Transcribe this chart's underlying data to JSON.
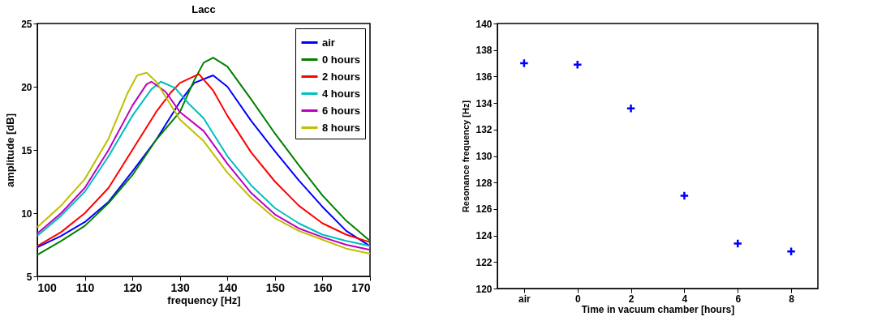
{
  "chart_data": [
    {
      "type": "line",
      "title": "Lacc",
      "xlabel": "frequency [Hz]",
      "ylabel": "amplitude [dB]",
      "xlim": [
        100,
        170
      ],
      "ylim": [
        5,
        25
      ],
      "xticks": [
        100,
        110,
        120,
        130,
        140,
        150,
        160,
        170
      ],
      "yticks": [
        5,
        10,
        15,
        20,
        25
      ],
      "grid": false,
      "legend": "top right",
      "line_style": "solid",
      "series": [
        {
          "name": "air",
          "color": "#0000ff",
          "x": [
            100,
            105,
            110,
            115,
            120,
            125,
            130,
            133,
            137,
            140,
            145,
            150,
            155,
            160,
            165,
            170
          ],
          "values": [
            7.3,
            8.2,
            9.3,
            10.9,
            13.3,
            15.8,
            18.8,
            20.3,
            20.9,
            20.0,
            17.3,
            14.9,
            12.6,
            10.5,
            8.6,
            7.4
          ]
        },
        {
          "name": "0 hours",
          "color": "#008000",
          "x": [
            100,
            105,
            110,
            115,
            120,
            125,
            130,
            133,
            135,
            137,
            140,
            145,
            150,
            155,
            160,
            165,
            170
          ],
          "values": [
            6.7,
            7.8,
            9.0,
            10.8,
            13.0,
            15.8,
            18.0,
            20.5,
            21.9,
            22.3,
            21.6,
            19.0,
            16.3,
            13.8,
            11.4,
            9.4,
            7.8
          ]
        },
        {
          "name": "2 hours",
          "color": "#ff0000",
          "x": [
            100,
            105,
            110,
            115,
            120,
            125,
            128,
            130,
            134,
            137,
            140,
            145,
            150,
            155,
            160,
            165,
            170
          ],
          "values": [
            7.4,
            8.5,
            10.0,
            12.0,
            15.0,
            18.0,
            19.5,
            20.3,
            21.0,
            19.7,
            17.7,
            14.8,
            12.5,
            10.6,
            9.2,
            8.3,
            7.7
          ]
        },
        {
          "name": "4 hours",
          "color": "#00bfbf",
          "x": [
            100,
            105,
            110,
            115,
            120,
            124,
            126,
            129,
            132,
            135,
            140,
            145,
            150,
            155,
            160,
            165,
            170
          ],
          "values": [
            8.2,
            9.8,
            11.7,
            14.5,
            17.7,
            19.8,
            20.4,
            19.9,
            18.6,
            17.5,
            14.5,
            12.2,
            10.4,
            9.2,
            8.3,
            7.8,
            7.4
          ]
        },
        {
          "name": "6 hours",
          "color": "#bf00bf",
          "x": [
            100,
            105,
            110,
            115,
            120,
            123,
            124,
            127,
            130,
            135,
            140,
            145,
            150,
            155,
            160,
            165,
            170
          ],
          "values": [
            8.4,
            10.0,
            12.0,
            15.0,
            18.5,
            20.2,
            20.4,
            19.6,
            18.0,
            16.5,
            13.9,
            11.6,
            9.9,
            8.8,
            8.1,
            7.5,
            7.1
          ]
        },
        {
          "name": "8 hours",
          "color": "#bfbf00",
          "x": [
            100,
            105,
            110,
            115,
            119,
            121,
            123,
            125,
            128,
            130,
            135,
            140,
            145,
            150,
            155,
            160,
            165,
            170
          ],
          "values": [
            8.9,
            10.6,
            12.7,
            15.9,
            19.5,
            20.9,
            21.1,
            20.4,
            18.6,
            17.4,
            15.7,
            13.2,
            11.2,
            9.6,
            8.6,
            7.9,
            7.2,
            6.8
          ]
        }
      ]
    },
    {
      "type": "scatter",
      "xlabel": "Time in vacuum chamber [hours]",
      "ylabel": "Resonance frequency [Hz]",
      "categories": [
        "air",
        "0",
        "2",
        "4",
        "6",
        "8"
      ],
      "values": [
        137.0,
        136.9,
        133.6,
        127.0,
        123.4,
        122.8
      ],
      "color": "#0000ff",
      "marker": "cross",
      "ylim": [
        120,
        140
      ],
      "yticks": [
        120,
        122,
        124,
        126,
        128,
        130,
        132,
        134,
        136,
        138,
        140
      ],
      "grid": false
    }
  ]
}
